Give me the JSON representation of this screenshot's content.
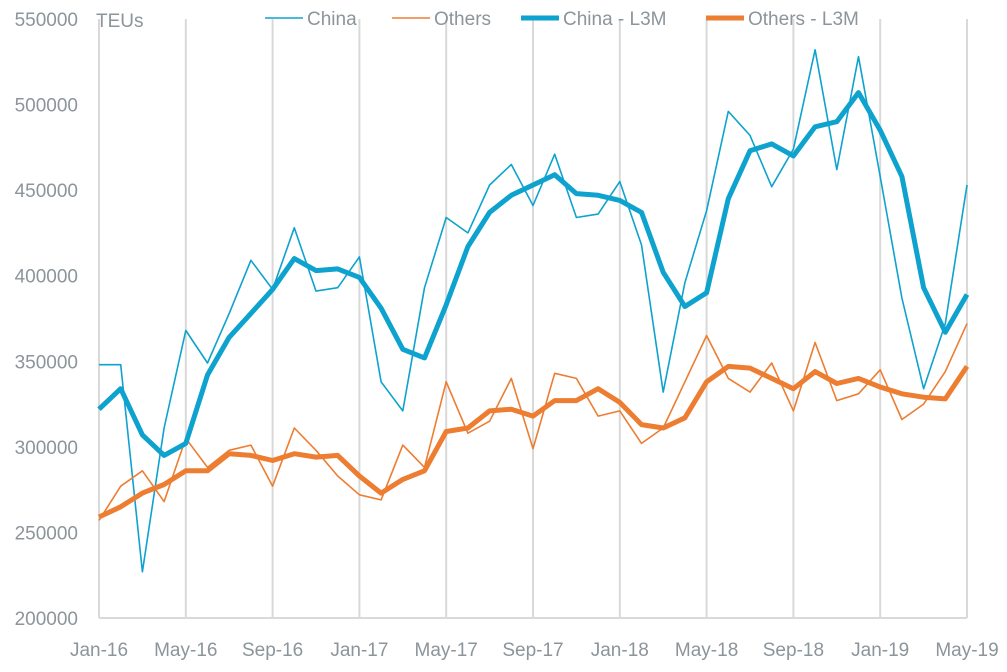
{
  "chart_data": {
    "type": "line",
    "title": "",
    "ylabel": "TEUs",
    "xlabel": "",
    "ylim": [
      200000,
      550000
    ],
    "yticks": [
      200000,
      250000,
      300000,
      350000,
      400000,
      450000,
      500000,
      550000
    ],
    "xtick_labels": [
      "Jan-16",
      "May-16",
      "Sep-16",
      "Jan-17",
      "May-17",
      "Sep-17",
      "Jan-18",
      "May-18",
      "Sep-18",
      "Jan-19",
      "May-19"
    ],
    "x": [
      "Jan-16",
      "Feb-16",
      "Mar-16",
      "Apr-16",
      "May-16",
      "Jun-16",
      "Jul-16",
      "Aug-16",
      "Sep-16",
      "Oct-16",
      "Nov-16",
      "Dec-16",
      "Jan-17",
      "Feb-17",
      "Mar-17",
      "Apr-17",
      "May-17",
      "Jun-17",
      "Jul-17",
      "Aug-17",
      "Sep-17",
      "Oct-17",
      "Nov-17",
      "Dec-17",
      "Jan-18",
      "Feb-18",
      "Mar-18",
      "Apr-18",
      "May-18",
      "Jun-18",
      "Jul-18",
      "Aug-18",
      "Sep-18",
      "Oct-18",
      "Nov-18",
      "Dec-18",
      "Jan-19",
      "Feb-19",
      "Mar-19",
      "Apr-19",
      "May-19"
    ],
    "grid": "vertical every 4 months",
    "legend_position": "top",
    "series": [
      {
        "name": "China",
        "color": "#0ea2cf",
        "weight": "thin",
        "values": [
          348000,
          348000,
          227000,
          311000,
          368000,
          349000,
          378000,
          409000,
          392000,
          428000,
          391000,
          393000,
          411000,
          338000,
          321000,
          393000,
          434000,
          425000,
          453000,
          465000,
          441000,
          471000,
          434000,
          436000,
          455000,
          418000,
          332000,
          396000,
          438000,
          496000,
          482000,
          452000,
          474000,
          532000,
          462000,
          528000,
          458000,
          387000,
          334000,
          372000,
          453000
        ]
      },
      {
        "name": "Others",
        "color": "#ed7d31",
        "weight": "thin",
        "values": [
          257000,
          277000,
          286000,
          268000,
          305000,
          288000,
          298000,
          301000,
          277000,
          311000,
          298000,
          283000,
          272000,
          269000,
          301000,
          288000,
          338000,
          308000,
          315000,
          340000,
          299000,
          343000,
          340000,
          318000,
          321000,
          302000,
          311000,
          338000,
          365000,
          340000,
          332000,
          349000,
          321000,
          361000,
          327000,
          331000,
          345000,
          316000,
          325000,
          344000,
          372000
        ]
      },
      {
        "name": "China - L3M",
        "color": "#0ea2cf",
        "weight": "thick",
        "values": [
          322000,
          334000,
          307000,
          295000,
          302000,
          342000,
          364000,
          378000,
          392000,
          410000,
          403000,
          404000,
          399000,
          381000,
          357000,
          352000,
          383000,
          417000,
          437000,
          447000,
          453000,
          459000,
          448000,
          447000,
          444000,
          437000,
          402000,
          382000,
          390000,
          445000,
          473000,
          477000,
          470000,
          487000,
          490000,
          507000,
          485000,
          458000,
          393000,
          367000,
          389000
        ]
      },
      {
        "name": "Others - L3M",
        "color": "#ed7d31",
        "weight": "thick",
        "values": [
          259000,
          265000,
          273000,
          278000,
          286000,
          286000,
          296000,
          295000,
          292000,
          296000,
          294000,
          295000,
          283000,
          273000,
          281000,
          286000,
          309000,
          311000,
          321000,
          322000,
          318000,
          327000,
          327000,
          334000,
          326000,
          313000,
          311000,
          317000,
          338000,
          347000,
          346000,
          340000,
          334000,
          344000,
          337000,
          340000,
          335000,
          331000,
          329000,
          328000,
          347000
        ]
      }
    ]
  }
}
